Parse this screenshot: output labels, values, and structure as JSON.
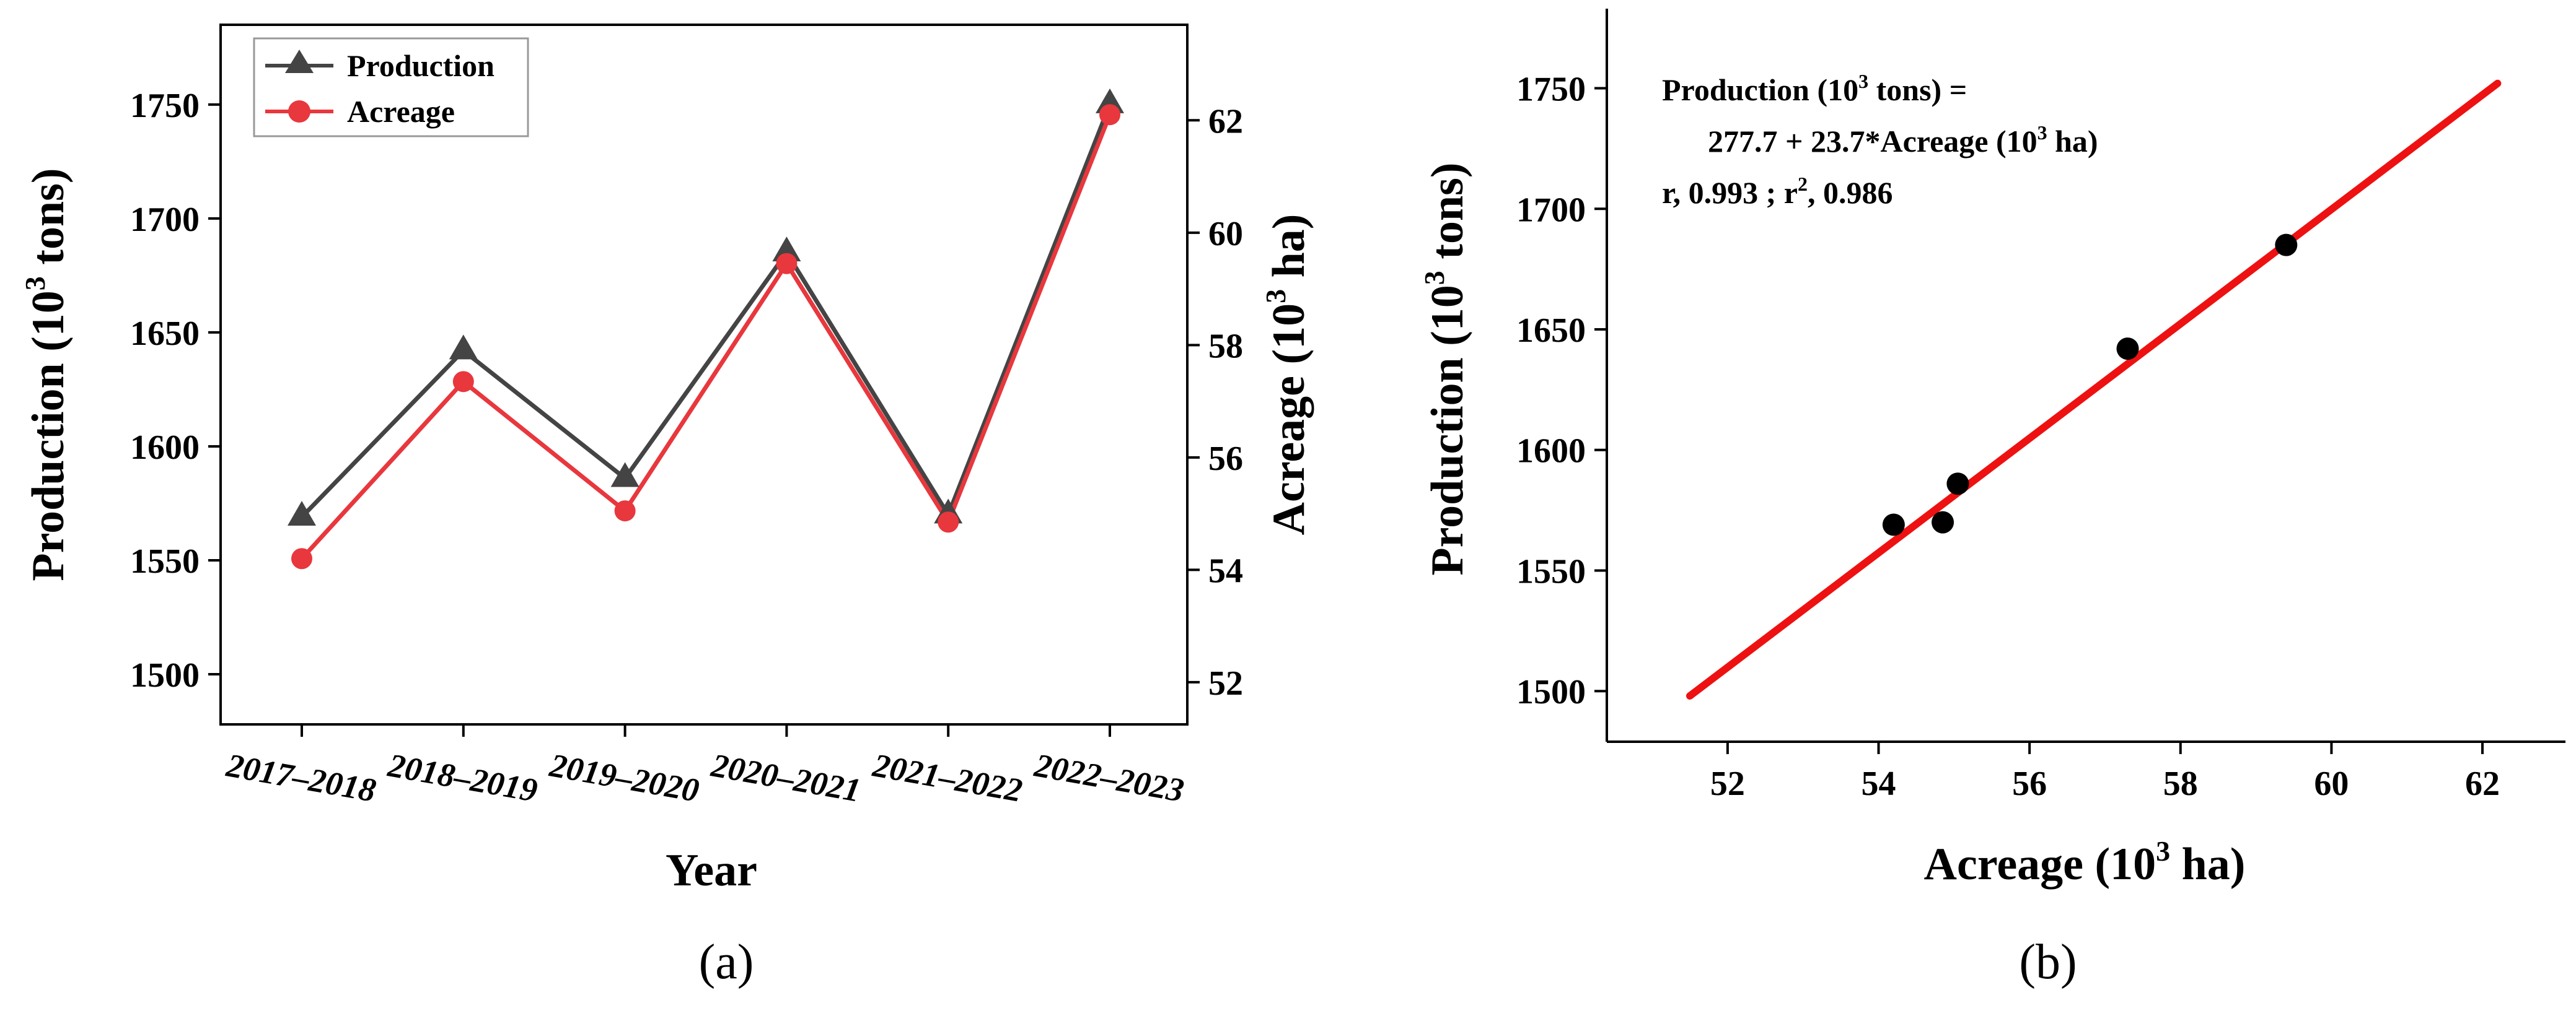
{
  "chart_data": [
    {
      "type": "line",
      "caption": "(a)",
      "xlabel": "Year",
      "ylabel_parts": [
        "Production (10",
        "3",
        " tons)"
      ],
      "y2label_parts": [
        "Acreage (10",
        "3",
        " ha)"
      ],
      "categories": [
        "2017–2018",
        "2018–2019",
        "2019–2020",
        "2020–2021",
        "2021–2022",
        "2022–2023"
      ],
      "ylim": [
        1478,
        1785
      ],
      "yticks": [
        1500,
        1550,
        1600,
        1650,
        1700,
        1750
      ],
      "y2lim": [
        51.25,
        63.7
      ],
      "y2ticks": [
        52,
        54,
        56,
        58,
        60,
        62
      ],
      "legend_position": "top-left",
      "series": [
        {
          "name": "Production",
          "axis": "left",
          "marker": "triangle",
          "color": "#444444",
          "values": [
            1569,
            1642,
            1586,
            1685,
            1570,
            1750
          ]
        },
        {
          "name": "Acreage",
          "axis": "right",
          "marker": "circle",
          "color": "#e8373d",
          "values": [
            54.2,
            57.35,
            55.05,
            59.45,
            54.85,
            62.1
          ]
        }
      ]
    },
    {
      "type": "scatter",
      "caption": "(b)",
      "xlabel_parts": [
        "Acreage (10",
        "3",
        " ha)"
      ],
      "ylabel_parts": [
        "Production (10",
        "3",
        " tons)"
      ],
      "xlim": [
        50.4,
        63.1
      ],
      "xticks": [
        52,
        54,
        56,
        58,
        60,
        62
      ],
      "ylim": [
        1479,
        1783
      ],
      "yticks": [
        1500,
        1550,
        1600,
        1650,
        1700,
        1750
      ],
      "points": [
        {
          "x": 54.2,
          "y": 1569
        },
        {
          "x": 54.85,
          "y": 1570
        },
        {
          "x": 55.05,
          "y": 1586
        },
        {
          "x": 57.3,
          "y": 1642
        },
        {
          "x": 59.4,
          "y": 1685
        }
      ],
      "point_color": "#000000",
      "fit_line": {
        "x": [
          51.5,
          62.2
        ],
        "y": [
          1498,
          1752
        ],
        "color": "#ee1111"
      },
      "annotation": {
        "line1_parts": [
          "Production (10",
          "3",
          " tons)  ="
        ],
        "line2_parts": [
          "277.7 + 23.7*Acreage (10",
          "3",
          " ha)"
        ],
        "line3_parts": [
          "r, 0.993  ;   r",
          "2",
          ", 0.986"
        ]
      }
    }
  ]
}
